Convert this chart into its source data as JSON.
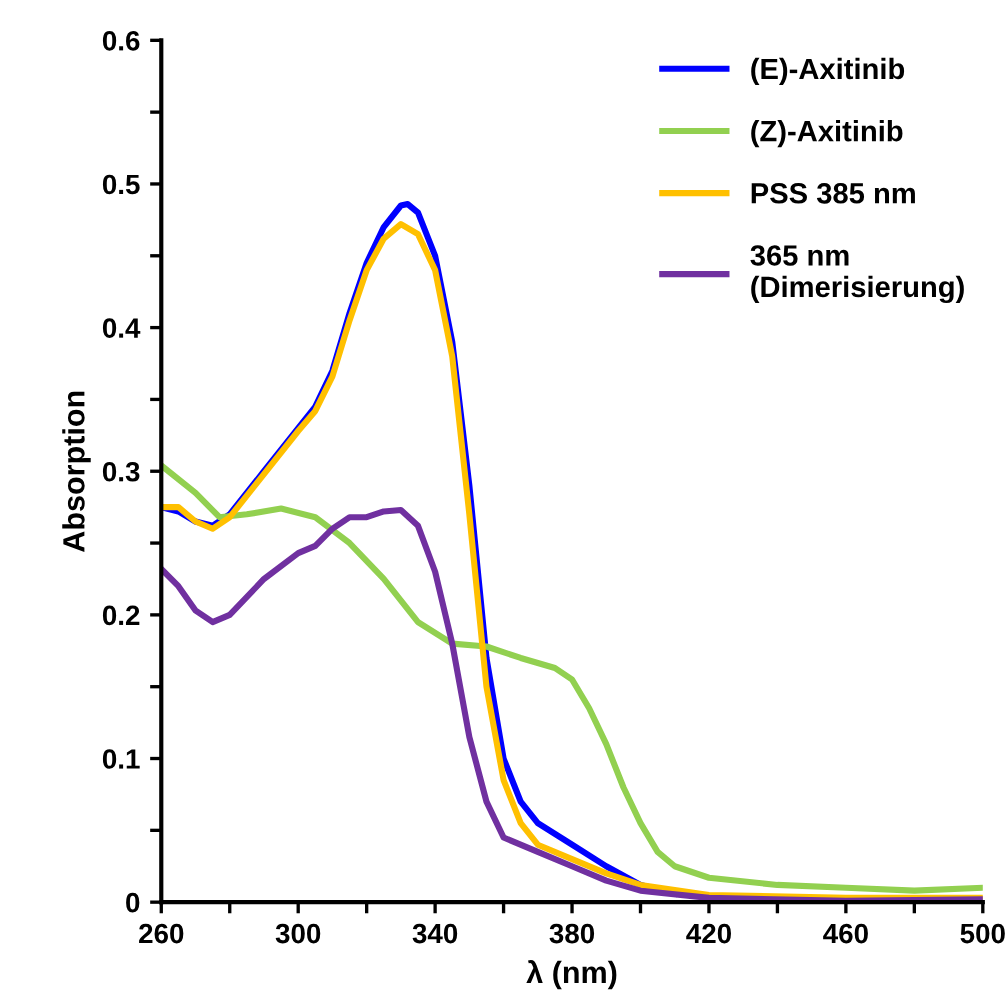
{
  "chart_data": {
    "type": "line",
    "xlabel": "λ (nm)",
    "ylabel": "Absorption",
    "xlim": [
      260,
      500
    ],
    "ylim": [
      0,
      0.6
    ],
    "xticks": [
      260,
      {
        "value": 280,
        "label": null
      },
      300,
      {
        "value": 320,
        "label": null
      },
      340,
      {
        "value": 360,
        "label": null
      },
      380,
      {
        "value": 400,
        "label": null
      },
      420,
      {
        "value": 440,
        "label": null
      },
      460,
      {
        "value": 480,
        "label": null
      },
      500
    ],
    "yticks": [
      0,
      {
        "value": 0.05,
        "label": null
      },
      0.1,
      {
        "value": 0.15,
        "label": null
      },
      0.2,
      {
        "value": 0.25,
        "label": null
      },
      0.3,
      {
        "value": 0.35,
        "label": null
      },
      0.4,
      {
        "value": 0.45,
        "label": null
      },
      0.5,
      {
        "value": 0.55,
        "label": null
      },
      0.6
    ],
    "grid": false,
    "legend": "top right",
    "marker": "none",
    "line_style": "solid",
    "series": [
      {
        "name": "(E)-Axitinib",
        "color": "#0000ff",
        "x": [
          260,
          265,
          270,
          275,
          280,
          290,
          300,
          305,
          310,
          315,
          320,
          325,
          330,
          332,
          335,
          340,
          345,
          350,
          355,
          360,
          365,
          370,
          380,
          390,
          400,
          410
        ],
        "values": [
          0.275,
          0.272,
          0.265,
          0.262,
          0.27,
          0.3,
          0.33,
          0.345,
          0.37,
          0.41,
          0.445,
          0.47,
          0.485,
          0.486,
          0.48,
          0.45,
          0.39,
          0.29,
          0.17,
          0.1,
          0.07,
          0.055,
          0.04,
          0.025,
          0.012,
          0.006
        ]
      },
      {
        "name": "(Z)-Axitinib",
        "color": "#92d050",
        "x": [
          260,
          270,
          277,
          285,
          295,
          305,
          315,
          325,
          335,
          345,
          355,
          365,
          375,
          380,
          385,
          390,
          395,
          400,
          405,
          410,
          420,
          440,
          460,
          480,
          500
        ],
        "values": [
          0.304,
          0.285,
          0.268,
          0.27,
          0.274,
          0.268,
          0.25,
          0.225,
          0.195,
          0.18,
          0.178,
          0.17,
          0.163,
          0.155,
          0.135,
          0.11,
          0.08,
          0.055,
          0.035,
          0.025,
          0.017,
          0.012,
          0.01,
          0.008,
          0.01
        ]
      },
      {
        "name": "PSS 385 nm",
        "color": "#ffc000",
        "x": [
          260,
          265,
          270,
          275,
          280,
          290,
          300,
          305,
          310,
          315,
          320,
          325,
          330,
          335,
          340,
          345,
          350,
          355,
          360,
          365,
          370,
          380,
          390,
          400,
          420,
          460,
          500
        ],
        "values": [
          0.275,
          0.275,
          0.265,
          0.26,
          0.268,
          0.298,
          0.328,
          0.342,
          0.366,
          0.405,
          0.44,
          0.462,
          0.472,
          0.465,
          0.44,
          0.38,
          0.27,
          0.15,
          0.085,
          0.055,
          0.04,
          0.03,
          0.02,
          0.012,
          0.005,
          0.003,
          0.003
        ]
      },
      {
        "name": "365 nm\n(Dimerisierung)",
        "color": "#7030a0",
        "x": [
          260,
          265,
          270,
          275,
          280,
          290,
          300,
          305,
          310,
          315,
          320,
          325,
          330,
          335,
          340,
          345,
          350,
          355,
          360,
          370,
          380,
          390,
          400,
          420,
          460,
          500
        ],
        "values": [
          0.232,
          0.22,
          0.203,
          0.195,
          0.2,
          0.225,
          0.243,
          0.248,
          0.26,
          0.268,
          0.268,
          0.272,
          0.273,
          0.262,
          0.23,
          0.18,
          0.115,
          0.07,
          0.045,
          0.035,
          0.025,
          0.015,
          0.008,
          0.003,
          0.001,
          0.002
        ]
      }
    ]
  }
}
